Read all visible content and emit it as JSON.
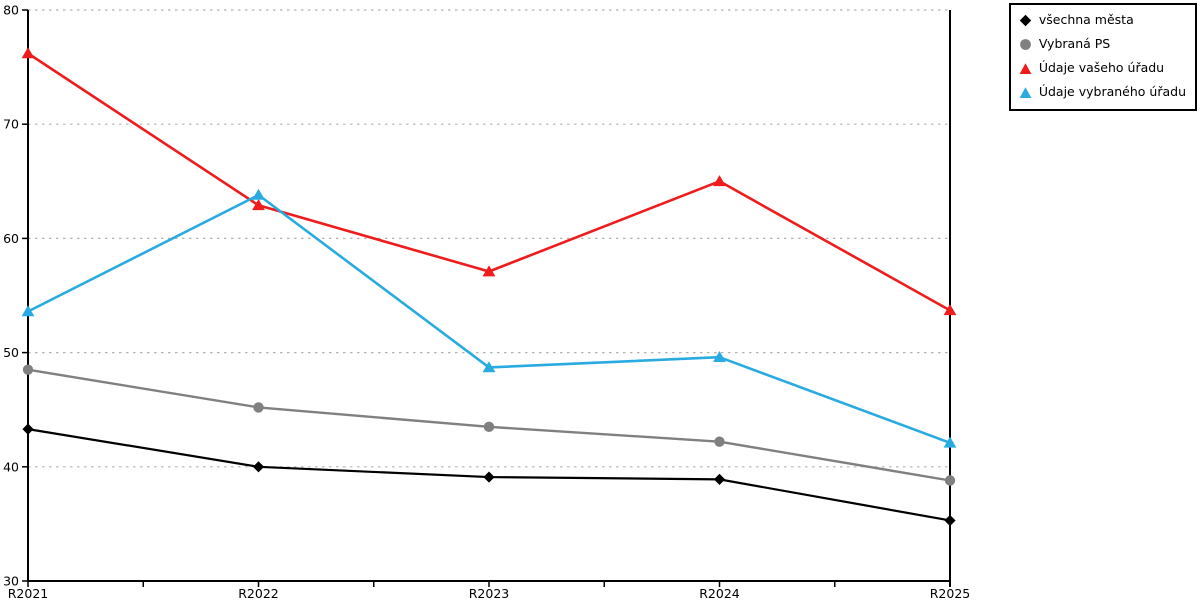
{
  "chart": {
    "background": "#ffffff",
    "axis_color": "#000000",
    "gridline_color": "#b3b3b3",
    "text_color": "#000000"
  },
  "chart_data": {
    "type": "line",
    "title": "",
    "xlabel": "",
    "ylabel": "",
    "categories": [
      "R2021",
      "R2022",
      "R2023",
      "R2024",
      "R2025"
    ],
    "series": [
      {
        "name": "všechna města",
        "marker": "diamond",
        "color": "#000000",
        "line_width": 2.2,
        "values": [
          43.3,
          40.0,
          39.1,
          38.9,
          35.3
        ]
      },
      {
        "name": "Vybraná PS",
        "marker": "circle",
        "color": "#808080",
        "line_width": 2.4,
        "values": [
          48.5,
          45.2,
          43.5,
          42.2,
          38.8
        ]
      },
      {
        "name": "Údaje vašeho úřadu",
        "marker": "triangle",
        "color": "#ee1c1c",
        "line_width": 2.6,
        "values": [
          76.2,
          62.9,
          57.1,
          65.0,
          53.7
        ]
      },
      {
        "name": "Údaje vybraného úřadu",
        "marker": "triangle",
        "color": "#29abe2",
        "line_width": 2.6,
        "values": [
          53.6,
          63.8,
          48.7,
          49.6,
          42.1
        ]
      }
    ],
    "ylim": [
      30,
      80
    ],
    "yticks": [
      30,
      40,
      50,
      60,
      70,
      80
    ],
    "grid": "horizontal-dotted",
    "legend_position": "top-right"
  }
}
